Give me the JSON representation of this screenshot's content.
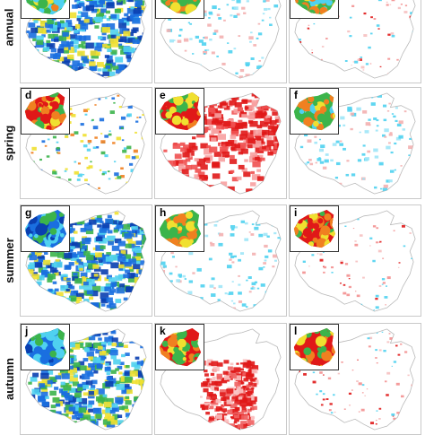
{
  "rows": [
    {
      "label": "annual",
      "panels": [
        {
          "letter": "",
          "variant": "blue-dense",
          "inset": "green-mix"
        },
        {
          "letter": "",
          "variant": "cyan-sparse",
          "inset": "green-orange"
        },
        {
          "letter": "",
          "variant": "red-sparse",
          "inset": "green-mix"
        }
      ]
    },
    {
      "label": "spring",
      "panels": [
        {
          "letter": "d",
          "variant": "multi-sparse",
          "inset": "red-orange"
        },
        {
          "letter": "e",
          "variant": "red-dense",
          "inset": "red-orange"
        },
        {
          "letter": "f",
          "variant": "cyan-sparse",
          "inset": "green-mix"
        }
      ]
    },
    {
      "label": "summer",
      "panels": [
        {
          "letter": "g",
          "variant": "blue-dense",
          "inset": "blue-mix"
        },
        {
          "letter": "h",
          "variant": "cyan-sparse",
          "inset": "green-orange"
        },
        {
          "letter": "i",
          "variant": "red-sparse",
          "inset": "red-green"
        }
      ]
    },
    {
      "label": "autumn",
      "panels": [
        {
          "letter": "j",
          "variant": "blue-dense",
          "inset": "blue-mix"
        },
        {
          "letter": "k",
          "variant": "red-center",
          "inset": "red-orange"
        },
        {
          "letter": "l",
          "variant": "red-sparse",
          "inset": "red-green"
        }
      ]
    }
  ],
  "colors": {
    "blue_dark": "#0a3fb0",
    "blue": "#1a6fe0",
    "cyan": "#4fd1f0",
    "green": "#3cb44b",
    "yellow": "#f0e030",
    "orange": "#f08020",
    "red": "#e01818",
    "outline": "#b8b8b8"
  }
}
